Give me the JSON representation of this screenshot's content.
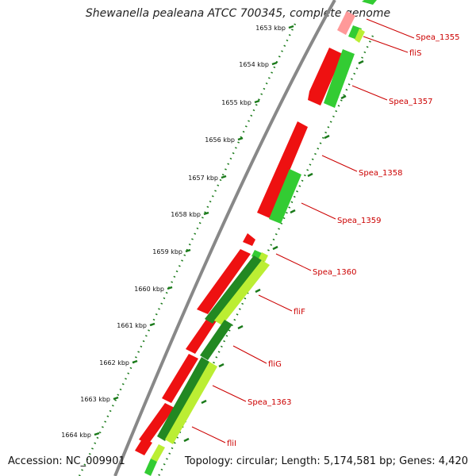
{
  "title": "Shewanella pealeana ATCC 700345, complete genome",
  "accession": "Accession: NC_009901",
  "summary": "Topology: circular; Length: 5,174,581 bp; Genes: 4,420",
  "ruler": [
    {
      "label": "1653 kbp"
    },
    {
      "label": "1654 kbp"
    },
    {
      "label": "1655 kbp"
    },
    {
      "label": "1656 kbp"
    },
    {
      "label": "1657 kbp"
    },
    {
      "label": "1658 kbp"
    },
    {
      "label": "1659 kbp"
    },
    {
      "label": "1660 kbp"
    },
    {
      "label": "1661 kbp"
    },
    {
      "label": "1662 kbp"
    },
    {
      "label": "1663 kbp"
    },
    {
      "label": "1664 kbp"
    }
  ],
  "gene_labels": [
    "Spea_1355",
    "fliS",
    "Spea_1357",
    "Spea_1358",
    "Spea_1359",
    "Spea_1360",
    "fliF",
    "fliG",
    "Spea_1363",
    "fliI"
  ],
  "colors": {
    "forward_strand": "#ee1111",
    "reverse_strand": "#33cc33",
    "dark_green": "#228822",
    "lime": "#bbee33",
    "backbone": "#888888",
    "label": "#cc0000",
    "tick": "#1a7a1a"
  }
}
